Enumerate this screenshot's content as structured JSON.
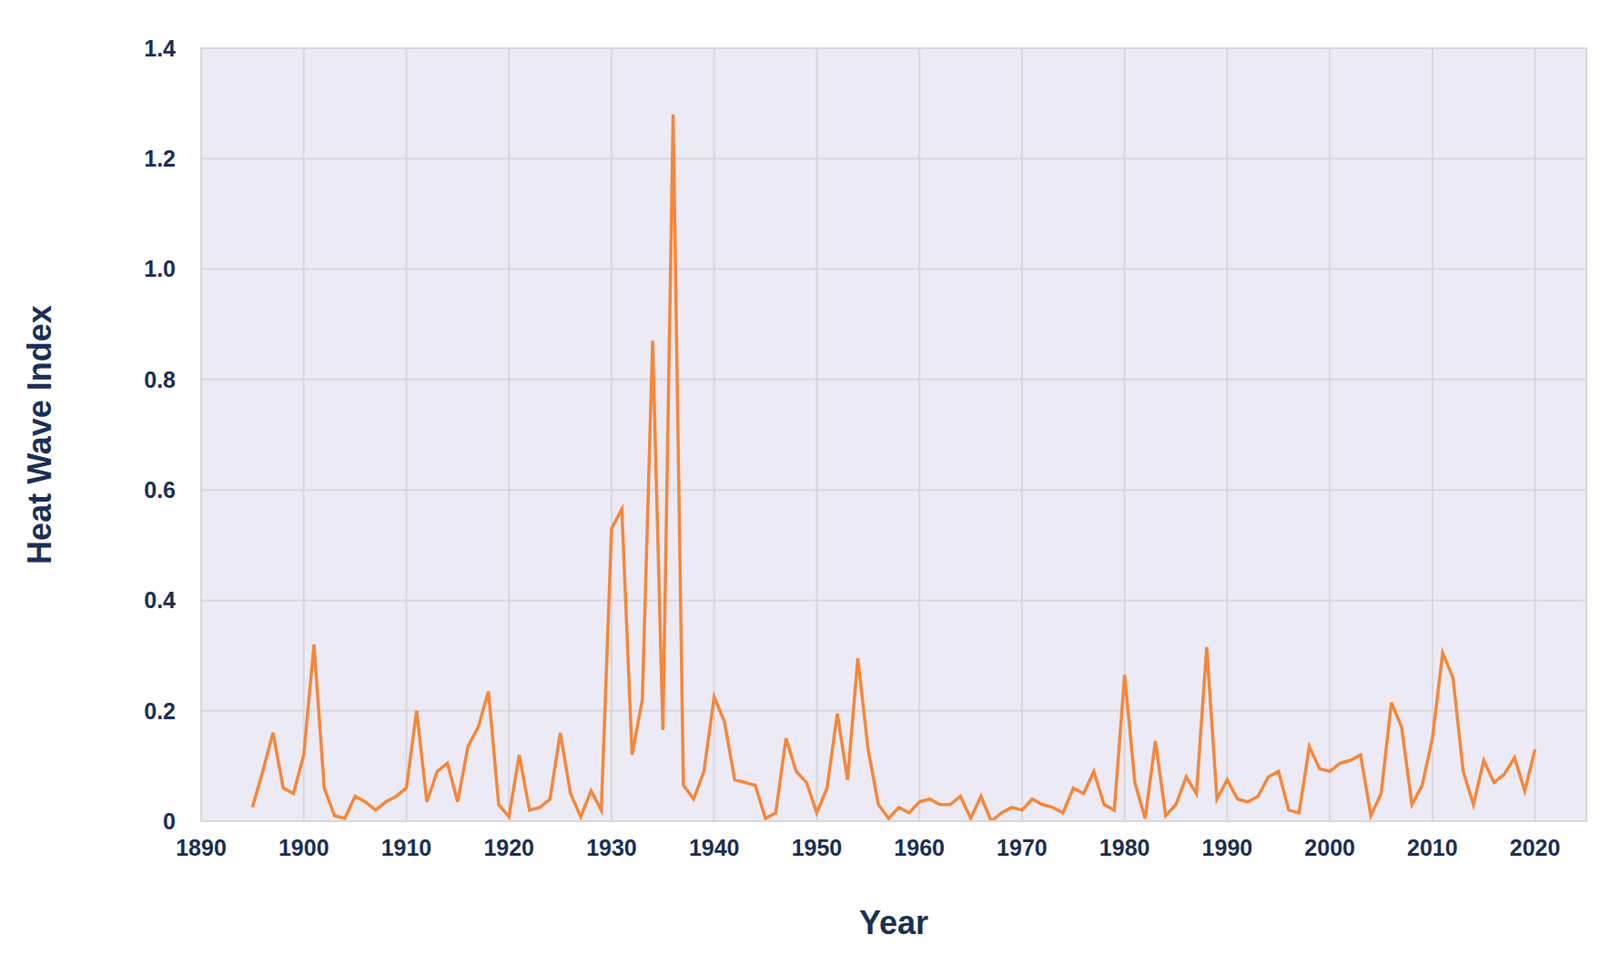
{
  "chart_data": {
    "type": "line",
    "x_label": "Year",
    "y_label": "Heat Wave Index",
    "color": "#f5873a",
    "grid": true,
    "xlim": [
      1890,
      2025
    ],
    "xticks": [
      1890,
      1900,
      1910,
      1920,
      1930,
      1940,
      1950,
      1960,
      1970,
      1980,
      1990,
      2000,
      2010,
      2020
    ],
    "ylim": [
      0,
      1.4
    ],
    "yticks": [
      0,
      0.2,
      0.4,
      0.6,
      0.8,
      {
        "value": 1,
        "label": "1.0"
      },
      1.2,
      1.4
    ],
    "x": [
      1895,
      1896,
      1897,
      1898,
      1899,
      1900,
      1901,
      1902,
      1903,
      1904,
      1905,
      1906,
      1907,
      1908,
      1909,
      1910,
      1911,
      1912,
      1913,
      1914,
      1915,
      1916,
      1917,
      1918,
      1919,
      1920,
      1921,
      1922,
      1923,
      1924,
      1925,
      1926,
      1927,
      1928,
      1929,
      1930,
      1931,
      1932,
      1933,
      1934,
      1935,
      1936,
      1937,
      1938,
      1939,
      1940,
      1941,
      1942,
      1943,
      1944,
      1945,
      1946,
      1947,
      1948,
      1949,
      1950,
      1951,
      1952,
      1953,
      1954,
      1955,
      1956,
      1957,
      1958,
      1959,
      1960,
      1961,
      1962,
      1963,
      1964,
      1965,
      1966,
      1967,
      1968,
      1969,
      1970,
      1971,
      1972,
      1973,
      1974,
      1975,
      1976,
      1977,
      1978,
      1979,
      1980,
      1981,
      1982,
      1983,
      1984,
      1985,
      1986,
      1987,
      1988,
      1989,
      1990,
      1991,
      1992,
      1993,
      1994,
      1995,
      1996,
      1997,
      1998,
      1999,
      2000,
      2001,
      2002,
      2003,
      2004,
      2005,
      2006,
      2007,
      2008,
      2009,
      2010,
      2011,
      2012,
      2013,
      2014,
      2015,
      2016,
      2017,
      2018,
      2019,
      2020
    ],
    "values": [
      0.025,
      0.09,
      0.16,
      0.06,
      0.05,
      0.12,
      0.32,
      0.06,
      0.01,
      0.005,
      0.045,
      0.035,
      0.02,
      0.035,
      0.045,
      0.06,
      0.2,
      0.035,
      0.09,
      0.105,
      0.035,
      0.135,
      0.17,
      0.235,
      0.03,
      0.008,
      0.12,
      0.02,
      0.025,
      0.04,
      0.16,
      0.05,
      0.008,
      0.055,
      0.02,
      0.53,
      0.565,
      0.12,
      0.22,
      0.87,
      0.165,
      1.28,
      0.065,
      0.04,
      0.09,
      0.225,
      0.18,
      0.075,
      0.07,
      0.065,
      0.005,
      0.015,
      0.15,
      0.09,
      0.07,
      0.015,
      0.06,
      0.195,
      0.075,
      0.295,
      0.13,
      0.03,
      0.005,
      0.025,
      0.015,
      0.035,
      0.04,
      0.03,
      0.03,
      0.045,
      0.005,
      0.045,
      0,
      0.015,
      0.025,
      0.02,
      0.04,
      0.03,
      0.025,
      0.015,
      0.06,
      0.05,
      0.09,
      0.03,
      0.02,
      0.265,
      0.07,
      0.005,
      0.145,
      0.01,
      0.03,
      0.08,
      0.05,
      0.315,
      0.04,
      0.075,
      0.04,
      0.035,
      0.045,
      0.08,
      0.09,
      0.02,
      0.015,
      0.135,
      0.095,
      0.09,
      0.105,
      0.11,
      0.12,
      0.01,
      0.05,
      0.215,
      0.17,
      0.03,
      0.065,
      0.15,
      0.305,
      0.26,
      0.09,
      0.03,
      0.11,
      0.07,
      0.085,
      0.115,
      0.055,
      0.13
    ]
  }
}
